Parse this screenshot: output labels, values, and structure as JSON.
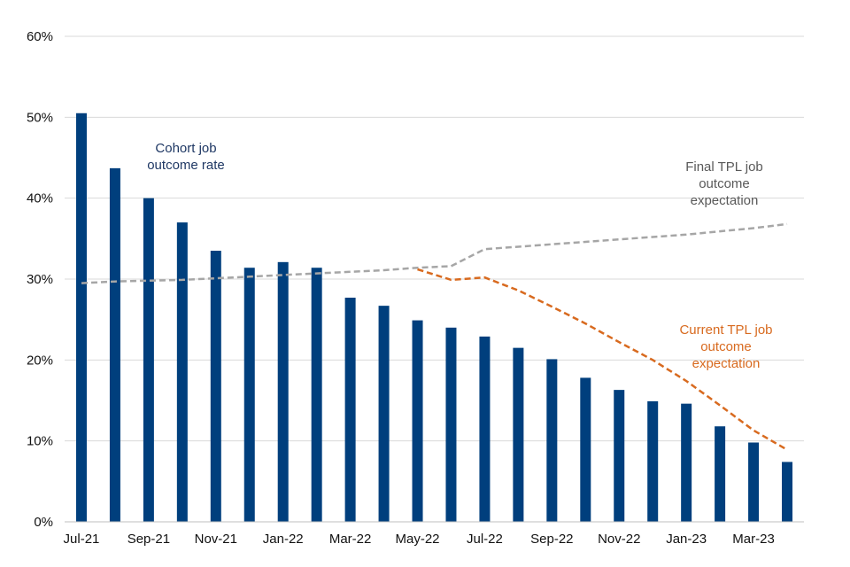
{
  "chart_data": {
    "type": "bar",
    "title": "",
    "xlabel": "",
    "ylabel": "",
    "ylim": [
      0,
      60
    ],
    "y_ticks": [
      "0%",
      "10%",
      "20%",
      "30%",
      "40%",
      "50%",
      "60%"
    ],
    "categories": [
      "Jul-21",
      "Aug-21",
      "Sep-21",
      "Oct-21",
      "Nov-21",
      "Dec-21",
      "Jan-22",
      "Feb-22",
      "Mar-22",
      "Apr-22",
      "May-22",
      "Jun-22",
      "Jul-22",
      "Aug-22",
      "Sep-22",
      "Oct-22",
      "Nov-22",
      "Dec-22",
      "Jan-23",
      "Feb-23",
      "Mar-23",
      "Apr-23"
    ],
    "x_tick_labels": [
      "Jul-21",
      "Sep-21",
      "Nov-21",
      "Jan-22",
      "Mar-22",
      "May-22",
      "Jul-22",
      "Sep-22",
      "Nov-22",
      "Jan-23",
      "Mar-23"
    ],
    "series": [
      {
        "name": "Cohort job outcome rate",
        "kind": "bar",
        "color": "#003F7D",
        "values": [
          50.5,
          43.7,
          40.0,
          37.0,
          33.5,
          31.4,
          32.1,
          31.4,
          27.7,
          26.7,
          24.9,
          24.0,
          22.9,
          21.5,
          20.1,
          17.8,
          16.3,
          14.9,
          14.6,
          11.8,
          9.8,
          7.4
        ]
      },
      {
        "name": "Final TPL job outcome expectation",
        "kind": "line",
        "dash": "dashed",
        "color": "#A6A6A6",
        "values": [
          29.5,
          29.7,
          29.8,
          29.9,
          30.1,
          30.3,
          30.5,
          30.7,
          30.9,
          31.1,
          31.4,
          31.6,
          33.7,
          34.0,
          34.3,
          34.6,
          34.9,
          35.2,
          35.5,
          35.9,
          36.3,
          36.8
        ]
      },
      {
        "name": "Current TPL job outcome expectation",
        "kind": "line",
        "dash": "dashed",
        "color": "#D86A1F",
        "values": [
          null,
          null,
          null,
          null,
          null,
          null,
          null,
          null,
          null,
          null,
          31.2,
          29.9,
          30.2,
          28.6,
          26.6,
          24.5,
          22.2,
          20.0,
          17.4,
          14.4,
          11.3,
          8.9
        ]
      }
    ],
    "annotations": [
      {
        "series": "Cohort job outcome rate",
        "lines": [
          "Cohort job",
          "outcome rate"
        ],
        "color": "#1F3864"
      },
      {
        "series": "Final TPL job outcome expectation",
        "lines": [
          "Final TPL job",
          "outcome",
          "expectation"
        ],
        "color": "#595959"
      },
      {
        "series": "Current TPL job outcome expectation",
        "lines": [
          "Current TPL job",
          "outcome",
          "expectation"
        ],
        "color": "#D86A1F"
      }
    ],
    "grid": true,
    "legend": "none"
  }
}
